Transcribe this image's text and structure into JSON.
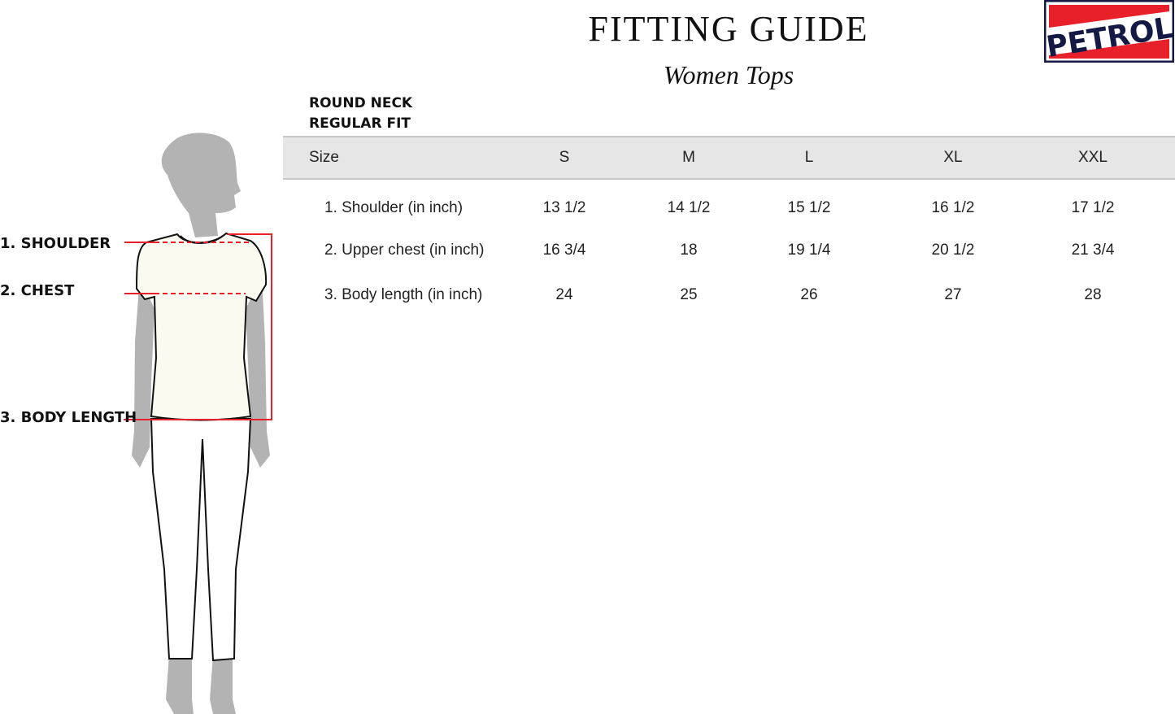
{
  "title": "FITTING GUIDE",
  "subtitle": "Women Tops",
  "logo": {
    "text": "PETROL",
    "colors": {
      "red": "#e8202a",
      "navy": "#151a45"
    }
  },
  "style": [
    "ROUND NECK",
    "REGULAR FIT"
  ],
  "table": {
    "header": [
      "Size",
      "S",
      "M",
      "L",
      "XL",
      "XXL"
    ],
    "rows": [
      [
        "1. Shoulder (in inch)",
        "13 1/2",
        "14 1/2",
        "15 1/2",
        "16 1/2",
        "17 1/2"
      ],
      [
        "2. Upper chest (in inch)",
        "16 3/4",
        "18",
        "19 1/4",
        "20 1/2",
        "21 3/4"
      ],
      [
        "3. Body length (in inch)",
        "24",
        "25",
        "26",
        "27",
        "28"
      ]
    ]
  },
  "measurements": [
    "1. SHOULDER",
    "2. CHEST",
    "3. BODY LENGTH"
  ],
  "colors": {
    "measure_line": "#e8202a",
    "header_band": "#e6e6e6",
    "silhouette": "#b3b3b3"
  }
}
